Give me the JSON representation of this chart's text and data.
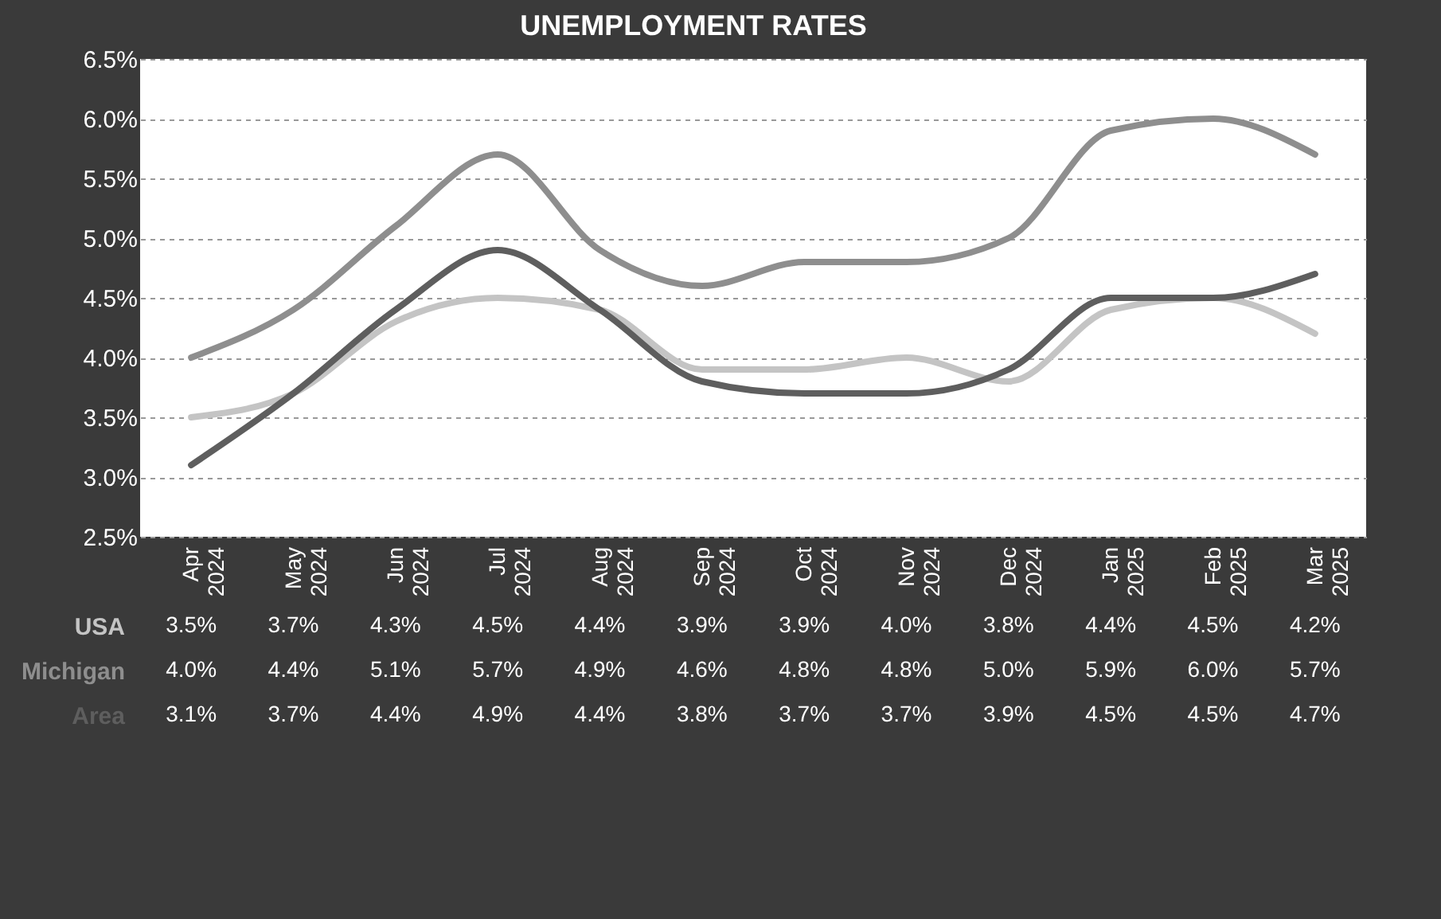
{
  "chart_data": {
    "type": "line",
    "title": "UNEMPLOYMENT RATES",
    "categories": [
      "Apr 2024",
      "May 2024",
      "Jun 2024",
      "Jul 2024",
      "Aug 2024",
      "Sep 2024",
      "Oct 2024",
      "Nov 2024",
      "Dec 2024",
      "Jan 2025",
      "Feb 2025",
      "Mar 2025"
    ],
    "series": [
      {
        "name": "USA",
        "color": "#c4c4c4",
        "values": [
          3.5,
          3.7,
          4.3,
          4.5,
          4.4,
          3.9,
          3.9,
          4.0,
          3.8,
          4.4,
          4.5,
          4.2
        ]
      },
      {
        "name": "Michigan",
        "color": "#8e8e8e",
        "values": [
          4.0,
          4.4,
          5.1,
          5.7,
          4.9,
          4.6,
          4.8,
          4.8,
          5.0,
          5.9,
          6.0,
          5.7
        ]
      },
      {
        "name": "Area",
        "color": "#5e5e5e",
        "values": [
          3.1,
          3.7,
          4.4,
          4.9,
          4.4,
          3.8,
          3.7,
          3.7,
          3.9,
          4.5,
          4.5,
          4.7
        ]
      }
    ],
    "value_labels": [
      [
        "3.5%",
        "3.7%",
        "4.3%",
        "4.5%",
        "4.4%",
        "3.9%",
        "3.9%",
        "4.0%",
        "3.8%",
        "4.4%",
        "4.5%",
        "4.2%"
      ],
      [
        "4.0%",
        "4.4%",
        "5.1%",
        "5.7%",
        "4.9%",
        "4.6%",
        "4.8%",
        "4.8%",
        "5.0%",
        "5.9%",
        "6.0%",
        "5.7%"
      ],
      [
        "3.1%",
        "3.7%",
        "4.4%",
        "4.9%",
        "4.4%",
        "3.8%",
        "3.7%",
        "3.7%",
        "3.9%",
        "4.5%",
        "4.5%",
        "4.7%"
      ]
    ],
    "ylim": [
      2.5,
      6.5
    ],
    "yticks": [
      {
        "value": 2.5,
        "label": "2.5%"
      },
      {
        "value": 3.0,
        "label": "3.0%"
      },
      {
        "value": 3.5,
        "label": "3.5%"
      },
      {
        "value": 4.0,
        "label": "4.0%"
      },
      {
        "value": 4.5,
        "label": "4.5%"
      },
      {
        "value": 5.0,
        "label": "5.0%"
      },
      {
        "value": 5.5,
        "label": "5.5%"
      },
      {
        "value": 6.0,
        "label": "6.0%"
      },
      {
        "value": 6.5,
        "label": "6.5%"
      }
    ],
    "grid": "y",
    "legend": false
  }
}
